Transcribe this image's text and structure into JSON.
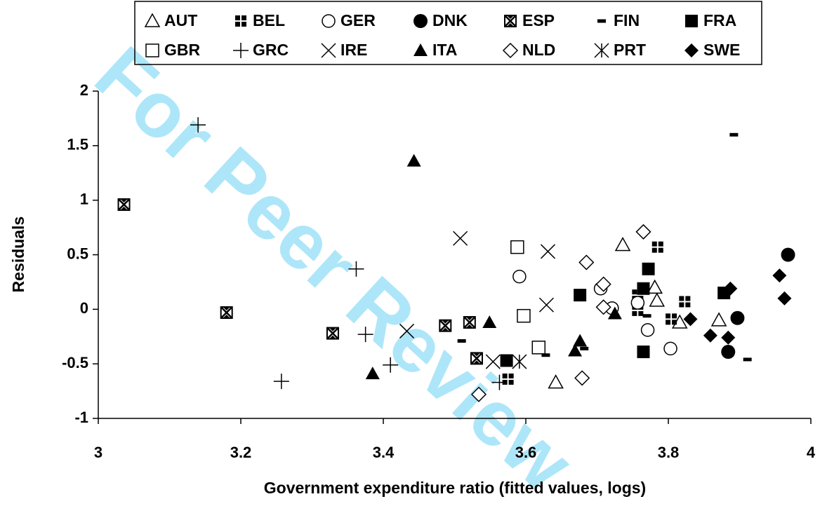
{
  "chart_data": {
    "type": "scatter",
    "watermark": "For Peer Review",
    "xlabel": "Government expenditure ratio (fitted values, logs)",
    "ylabel": "Residuals",
    "xlim": [
      3,
      4
    ],
    "xticks": [
      3,
      3.2,
      3.4,
      3.6,
      3.8,
      4
    ],
    "ylim": [
      -1,
      2
    ],
    "yticks": [
      -1,
      -0.5,
      0,
      0.5,
      1,
      1.5,
      2
    ],
    "grid": false,
    "legend": "top",
    "series": [
      {
        "name": "AUT",
        "marker": "triangle-open",
        "color": "#000000",
        "x": [
          3.736,
          3.781,
          3.784,
          3.816,
          3.871,
          3.642
        ],
        "values": [
          0.59,
          0.2,
          0.08,
          -0.12,
          -0.1,
          -0.67
        ]
      },
      {
        "name": "BEL",
        "marker": "quad-square",
        "color": "#000000",
        "x": [
          3.785,
          3.757,
          3.757,
          3.823,
          3.804,
          3.575
        ],
        "values": [
          0.57,
          0.13,
          -0.01,
          0.07,
          -0.09,
          -0.64
        ]
      },
      {
        "name": "GER",
        "marker": "circle-open",
        "color": "#000000",
        "x": [
          3.591,
          3.705,
          3.721,
          3.757,
          3.771,
          3.803
        ],
        "values": [
          0.3,
          0.19,
          0.01,
          0.06,
          -0.19,
          -0.36
        ]
      },
      {
        "name": "DNK",
        "marker": "circle",
        "color": "#000000",
        "x": [
          3.968,
          3.897,
          3.884
        ],
        "values": [
          0.5,
          -0.08,
          -0.39
        ]
      },
      {
        "name": "ESP",
        "marker": "square-x",
        "color": "#000000",
        "x": [
          3.036,
          3.18,
          3.329,
          3.487,
          3.521,
          3.531
        ],
        "values": [
          0.96,
          -0.03,
          -0.22,
          -0.15,
          -0.12,
          -0.45
        ]
      },
      {
        "name": "FIN",
        "marker": "dash",
        "color": "#000000",
        "x": [
          3.892,
          3.51,
          3.628,
          3.682,
          3.77,
          3.911
        ],
        "values": [
          1.6,
          -0.29,
          -0.42,
          -0.36,
          -0.06,
          -0.46
        ]
      },
      {
        "name": "FRA",
        "marker": "square",
        "color": "#000000",
        "x": [
          3.772,
          3.765,
          3.676,
          3.878,
          3.573,
          3.765
        ],
        "values": [
          0.37,
          0.19,
          0.13,
          0.15,
          -0.47,
          -0.39
        ]
      },
      {
        "name": "GBR",
        "marker": "square-open",
        "color": "#000000",
        "x": [
          3.588,
          3.597,
          3.618
        ],
        "values": [
          0.57,
          -0.06,
          -0.35
        ]
      },
      {
        "name": "GRC",
        "marker": "plus",
        "color": "#000000",
        "x": [
          3.14,
          3.362,
          3.375,
          3.41,
          3.257,
          3.563
        ],
        "values": [
          1.69,
          0.37,
          -0.23,
          -0.51,
          -0.66,
          -0.67
        ]
      },
      {
        "name": "IRE",
        "marker": "x",
        "color": "#000000",
        "x": [
          3.508,
          3.631,
          3.629,
          3.433,
          3.554
        ],
        "values": [
          0.65,
          0.53,
          0.04,
          -0.2,
          -0.48
        ]
      },
      {
        "name": "ITA",
        "marker": "triangle",
        "color": "#000000",
        "x": [
          3.443,
          3.549,
          3.725,
          3.676,
          3.669,
          3.385
        ],
        "values": [
          1.36,
          -0.12,
          -0.04,
          -0.29,
          -0.38,
          -0.59
        ]
      },
      {
        "name": "NLD",
        "marker": "diamond-open",
        "color": "#000000",
        "x": [
          3.765,
          3.685,
          3.709,
          3.709,
          3.679,
          3.534
        ],
        "values": [
          0.71,
          0.43,
          0.23,
          0.02,
          -0.63,
          -0.78
        ]
      },
      {
        "name": "PRT",
        "marker": "asterisk",
        "color": "#000000",
        "x": [
          3.591
        ],
        "values": [
          -0.48
        ]
      },
      {
        "name": "SWE",
        "marker": "diamond",
        "color": "#000000",
        "x": [
          3.956,
          3.963,
          3.887,
          3.831,
          3.859,
          3.884
        ],
        "values": [
          0.31,
          0.1,
          0.19,
          -0.09,
          -0.24,
          -0.26
        ]
      }
    ]
  }
}
